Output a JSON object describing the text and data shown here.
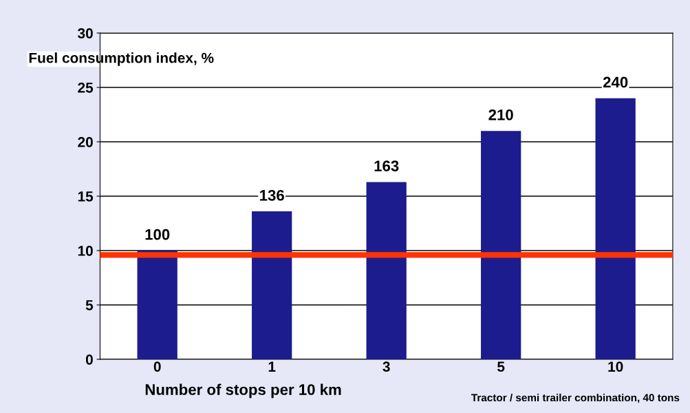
{
  "chart_data": {
    "type": "bar",
    "categories": [
      "0",
      "1",
      "3",
      "5",
      "10"
    ],
    "values": [
      10,
      13.6,
      16.3,
      21,
      24
    ],
    "color": "#1c1c8e",
    "ylim": [
      0,
      30
    ],
    "yticks": [
      0,
      5,
      10,
      15,
      20,
      25,
      30
    ],
    "ylabel": "Fuel consumption index, %",
    "xlabel": "Number of stops per 10 km",
    "annotations": [
      {
        "text": "100",
        "x": "0",
        "y": 10
      },
      {
        "text": "136",
        "x": "1",
        "y": 13.6
      },
      {
        "text": "163",
        "x": "3",
        "y": 16.3
      },
      {
        "text": "210",
        "x": "5",
        "y": 21
      },
      {
        "text": "240",
        "x": "10",
        "y": 24
      },
      "Tractor / semi trailer combination, 40 tons"
    ],
    "ref_lines": [
      {
        "axis": "y",
        "value": 9.6,
        "label": null,
        "color": "#ff3300",
        "line_style": "solid"
      }
    ],
    "grid": "y",
    "legend": false
  }
}
